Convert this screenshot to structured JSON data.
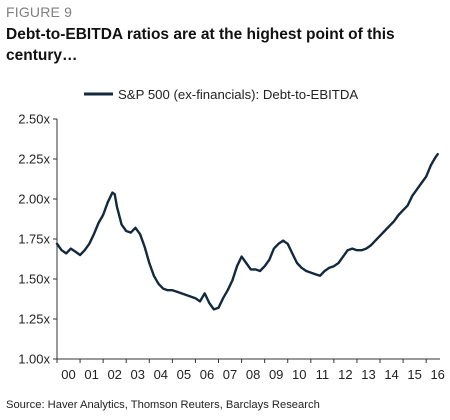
{
  "figure_label": "FIGURE 9",
  "title": "Debt-to-EBITDA ratios are at the highest point of this century…",
  "source": "Source: Haver Analytics, Thomson Reuters, Barclays Research",
  "colors": {
    "series": "#13293d",
    "axis": "#333333"
  },
  "chart_data": {
    "type": "line",
    "title": "Debt-to-EBITDA ratios are at the highest point of this century…",
    "xlabel": "",
    "ylabel": "",
    "x_tick_labels": [
      "00",
      "01",
      "02",
      "03",
      "04",
      "05",
      "06",
      "07",
      "08",
      "09",
      "10",
      "11",
      "12",
      "13",
      "14",
      "15",
      "16"
    ],
    "y_tick_labels": [
      "1.00x",
      "1.25x",
      "1.50x",
      "1.75x",
      "2.00x",
      "2.25x",
      "2.50x"
    ],
    "ylim": [
      1.0,
      2.5
    ],
    "xlim": [
      2000.0,
      2016.6
    ],
    "grid": false,
    "legend_position": "top",
    "series": [
      {
        "name": "S&P 500 (ex-financials): Debt-to-EBITDA",
        "x": [
          2000.0,
          2000.2,
          2000.4,
          2000.6,
          2000.8,
          2001.0,
          2001.2,
          2001.4,
          2001.6,
          2001.8,
          2002.0,
          2002.2,
          2002.4,
          2002.5,
          2002.6,
          2002.8,
          2003.0,
          2003.2,
          2003.4,
          2003.6,
          2003.8,
          2004.0,
          2004.2,
          2004.4,
          2004.6,
          2004.8,
          2005.0,
          2005.2,
          2005.4,
          2005.6,
          2005.8,
          2006.0,
          2006.2,
          2006.4,
          2006.6,
          2006.8,
          2007.0,
          2007.2,
          2007.4,
          2007.6,
          2007.8,
          2008.0,
          2008.2,
          2008.4,
          2008.6,
          2008.8,
          2009.0,
          2009.2,
          2009.4,
          2009.6,
          2009.8,
          2010.0,
          2010.2,
          2010.4,
          2010.6,
          2010.8,
          2011.0,
          2011.2,
          2011.4,
          2011.6,
          2011.8,
          2012.0,
          2012.2,
          2012.4,
          2012.6,
          2012.8,
          2013.0,
          2013.2,
          2013.4,
          2013.6,
          2013.8,
          2014.0,
          2014.2,
          2014.4,
          2014.6,
          2014.8,
          2015.0,
          2015.2,
          2015.4,
          2015.6,
          2015.8,
          2016.0,
          2016.2,
          2016.4,
          2016.5
        ],
        "values": [
          1.72,
          1.68,
          1.66,
          1.69,
          1.67,
          1.65,
          1.68,
          1.72,
          1.78,
          1.85,
          1.9,
          1.98,
          2.04,
          2.03,
          1.95,
          1.84,
          1.8,
          1.79,
          1.82,
          1.78,
          1.7,
          1.6,
          1.52,
          1.47,
          1.44,
          1.43,
          1.43,
          1.42,
          1.41,
          1.4,
          1.39,
          1.38,
          1.36,
          1.41,
          1.35,
          1.31,
          1.32,
          1.38,
          1.43,
          1.49,
          1.58,
          1.64,
          1.6,
          1.56,
          1.56,
          1.55,
          1.58,
          1.62,
          1.69,
          1.72,
          1.74,
          1.72,
          1.66,
          1.6,
          1.57,
          1.55,
          1.54,
          1.53,
          1.52,
          1.55,
          1.57,
          1.58,
          1.6,
          1.64,
          1.68,
          1.69,
          1.68,
          1.68,
          1.69,
          1.71,
          1.74,
          1.77,
          1.8,
          1.83,
          1.86,
          1.9,
          1.93,
          1.96,
          2.02,
          2.06,
          2.1,
          2.14,
          2.21,
          2.26,
          2.28
        ]
      }
    ]
  }
}
